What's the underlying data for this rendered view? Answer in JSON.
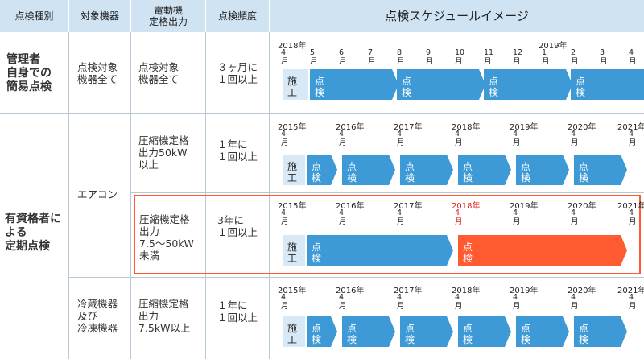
{
  "headers": {
    "type": "点検種別",
    "equipment": "対象機器",
    "output": "電動機\n定格出力",
    "frequency": "点検頻度",
    "schedule": "点検スケジュールイメージ"
  },
  "rows": {
    "simple": {
      "type": "管理者\n自身での\n簡易点検",
      "equipment": "点検対象\n機器全て",
      "output": "点検対象\n機器全て",
      "frequency": "３ヶ月に\n１回以上"
    },
    "periodic": {
      "type": "有資格者に\nよる\n定期点検",
      "aircon": "エアコン",
      "ac_large_output": "圧縮機定格\n出力50kW\n以上",
      "ac_large_frequency": "１年に\n１回以上",
      "ac_small_output": "圧縮機定格\n出力\n7.5〜50kW\n未満",
      "ac_small_frequency": "3年に\n１回以上",
      "refrig_equipment": "冷蔵機器\n及び\n冷凍機器",
      "refrig_output": "圧縮機定格\n出力\n7.5kW以上",
      "refrig_frequency": "１年に\n１回以上"
    }
  },
  "schedule_simple": {
    "years": [
      "2018年",
      "2019年"
    ],
    "months": [
      "4\n月",
      "5\n月",
      "6\n月",
      "7\n月",
      "8\n月",
      "9\n月",
      "10\n月",
      "11\n月",
      "12\n月",
      "1\n月",
      "2\n月",
      "3\n月",
      "4\n月"
    ],
    "start_label": "施\n工",
    "bar_label": "点\n検"
  },
  "schedule_ac_large": {
    "years": [
      "2015年",
      "2016年",
      "2017年",
      "2018年",
      "2019年",
      "2020年",
      "2021年"
    ],
    "month_label": "4\n月",
    "start_label": "施\n工",
    "bar_label": "点\n検"
  },
  "schedule_ac_small": {
    "years": [
      "2015年",
      "2016年",
      "2017年",
      "2018年",
      "2019年",
      "2020年",
      "2021年"
    ],
    "highlight_year": "2018年",
    "month_label": "4\n月",
    "start_label": "施\n工",
    "bar_label": "点\n検"
  },
  "schedule_refrig": {
    "years": [
      "2015年",
      "2016年",
      "2017年",
      "2018年",
      "2019年",
      "2020年",
      "2021年"
    ],
    "month_label": "4\n月",
    "start_label": "施\n工",
    "bar_label": "点\n検"
  },
  "colors": {
    "header_bg": "#cfe3f3",
    "bar_blue": "#3d9ad6",
    "start_box": "#d7e9f7",
    "highlight_orange": "#ff5a30",
    "highlight_red_text": "#e02020"
  }
}
